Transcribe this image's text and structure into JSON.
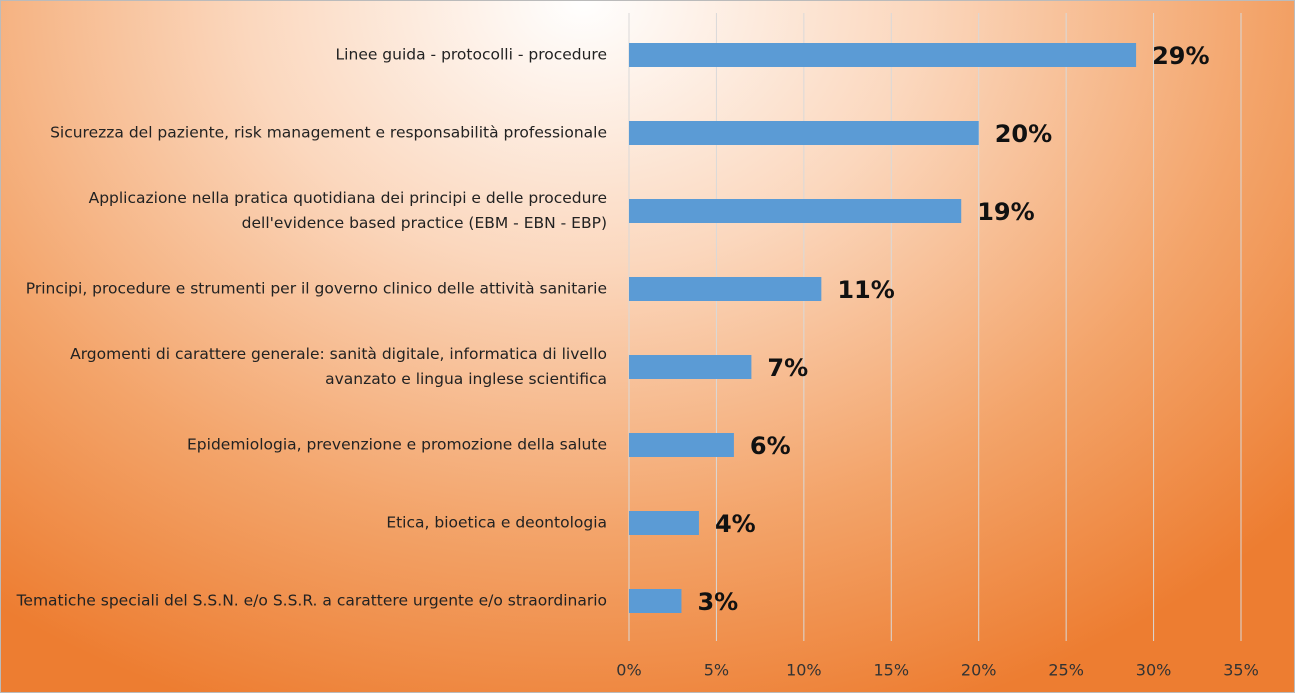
{
  "chart_data": {
    "type": "bar",
    "orientation": "horizontal",
    "categories": [
      "Linee guida - protocolli - procedure",
      "Sicurezza del paziente, risk management e responsabilità professionale",
      "Applicazione nella pratica quotidiana dei principi e delle procedure dell'evidence based practice (EBM - EBN - EBP)",
      "Principi, procedure e strumenti per il governo clinico delle attività sanitarie",
      "Argomenti di carattere generale: sanità digitale, informatica di livello avanzato e lingua inglese scientifica",
      "Epidemiologia, prevenzione e promozione della salute",
      "Etica, bioetica e deontologia",
      "Tematiche speciali del S.S.N. e/o S.S.R. a carattere urgente e/o straordinario"
    ],
    "values": [
      29,
      20,
      19,
      11,
      7,
      6,
      4,
      3
    ],
    "value_labels": [
      "29%",
      "20%",
      "19%",
      "11%",
      "7%",
      "6%",
      "4%",
      "3%"
    ],
    "color": "#5b9bd5",
    "xlim": [
      0,
      35
    ],
    "xticks": [
      {
        "value": 0,
        "label": "0%"
      },
      {
        "value": 5,
        "label": "5%"
      },
      {
        "value": 10,
        "label": "10%"
      },
      {
        "value": 15,
        "label": "15%"
      },
      {
        "value": 20,
        "label": "20%"
      },
      {
        "value": 25,
        "label": "25%"
      },
      {
        "value": 30,
        "label": "30%"
      },
      {
        "value": 35,
        "label": "35%"
      }
    ],
    "grid": true
  }
}
